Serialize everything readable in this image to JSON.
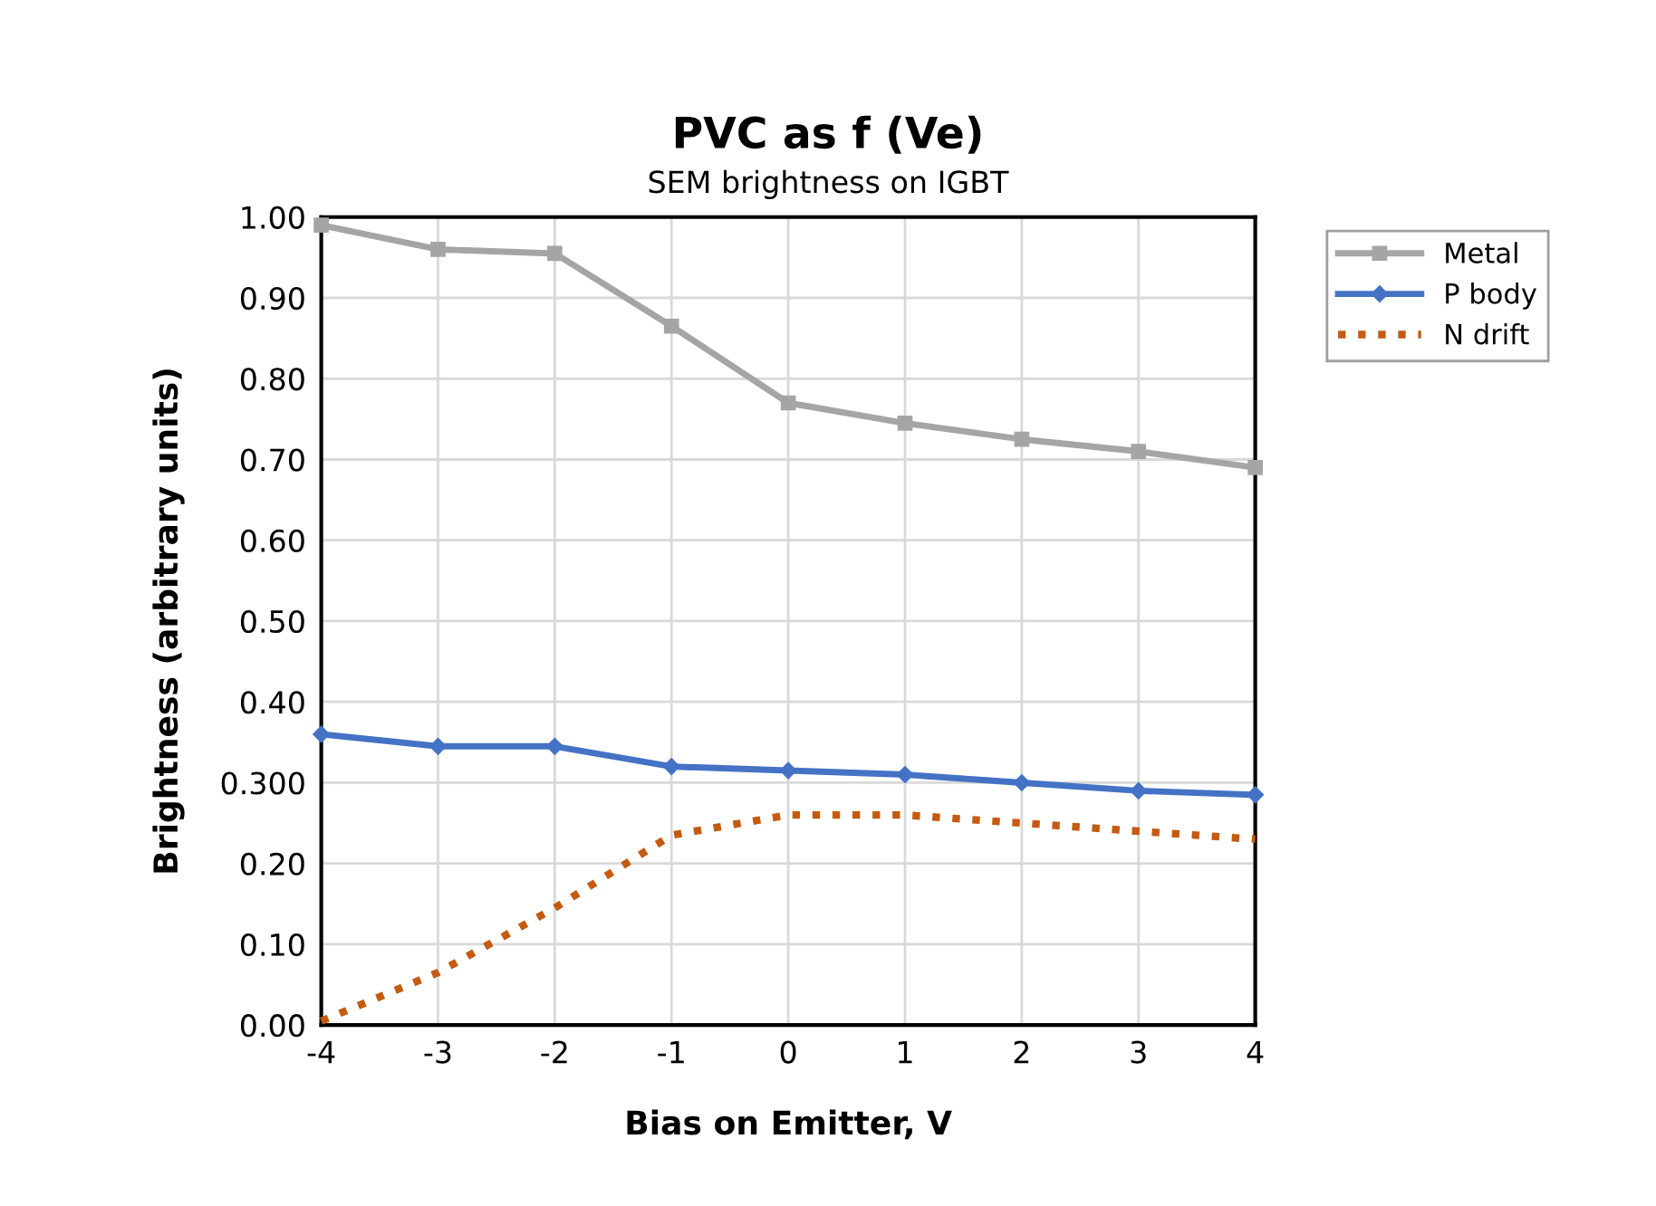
{
  "chart_data": {
    "type": "line",
    "title": "PVC as f (Ve)",
    "subtitle": "SEM brightness on IGBT",
    "xlabel": "Bias on Emitter, V",
    "ylabel": "Brightness (arbitrary units)",
    "x": [
      -4,
      -3,
      -2,
      -1,
      0,
      1,
      2,
      3,
      4
    ],
    "series": [
      {
        "name": "Metal",
        "color": "#a5a5a5",
        "marker": "square",
        "line_style": "solid",
        "values": [
          0.99,
          0.96,
          0.955,
          0.865,
          0.77,
          0.745,
          0.725,
          0.71,
          0.69
        ]
      },
      {
        "name": "P body",
        "color": "#4472c4",
        "marker": "diamond",
        "line_style": "solid",
        "values": [
          0.36,
          0.345,
          0.345,
          0.32,
          0.315,
          0.31,
          0.3,
          0.29,
          0.285
        ]
      },
      {
        "name": "N drift",
        "color": "#c55a11",
        "marker": "none",
        "line_style": "dotted",
        "values": [
          0.005,
          0.065,
          0.145,
          0.235,
          0.26,
          0.26,
          0.25,
          0.24,
          0.23
        ]
      }
    ],
    "xlim": [
      -4,
      4
    ],
    "xticks": [
      -4,
      -3,
      -2,
      -1,
      0,
      1,
      2,
      3,
      4
    ],
    "ylim": [
      0,
      1
    ],
    "yticks": [
      {
        "value": 0,
        "label": "0.00"
      },
      {
        "value": 0.1,
        "label": "0.10"
      },
      {
        "value": 0.2,
        "label": "0.20"
      },
      {
        "value": 0.3,
        "label": "0.300"
      },
      {
        "value": 0.4,
        "label": "0.40"
      },
      {
        "value": 0.5,
        "label": "0.50"
      },
      {
        "value": 0.6,
        "label": "0.60"
      },
      {
        "value": 0.7,
        "label": "0.70"
      },
      {
        "value": 0.8,
        "label": "0.80"
      },
      {
        "value": 0.9,
        "label": "0.90"
      },
      {
        "value": 1,
        "label": "1.00"
      }
    ],
    "grid": true,
    "legend": "top right"
  }
}
